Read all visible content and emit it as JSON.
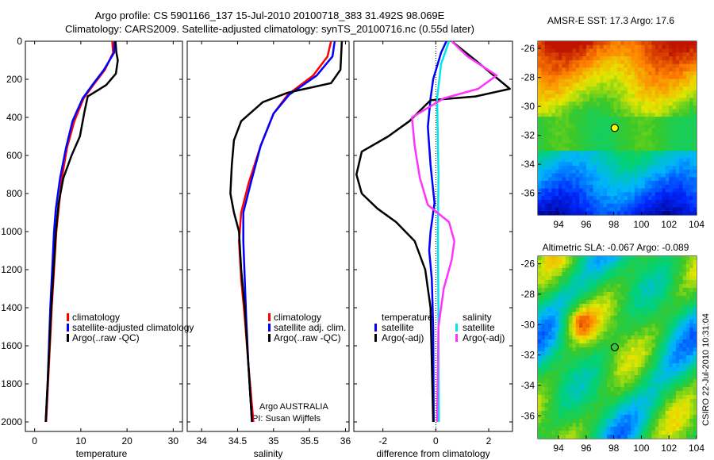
{
  "header": {
    "line1": "Argo profile: CS 5901166_137 15-Jul-2010 20100718_383 31.492S 98.069E",
    "line2": "Climatology: CARS2009. Satellite-adjusted climatology: synTS_20100716.nc (0.55d later)"
  },
  "footer": {
    "argo_line1": "Argo AUSTRALIA",
    "argo_line2": "PI: Susan Wijffels",
    "side_stamp": "CSIRO 22-Jul-2010 10:31:04"
  },
  "colors": {
    "climatology": "#ff0000",
    "satellite": "#0000ff",
    "argo": "#000000",
    "sal_satellite": "#00e5ee",
    "sal_argo": "#ff33ff"
  },
  "chart_data": [
    {
      "type": "line",
      "id": "temperature-panel",
      "xlabel": "temperature",
      "xlim": [
        -2,
        32
      ],
      "ylim": [
        0,
        2050
      ],
      "xticks": [
        "0",
        "10",
        "20",
        "30"
      ],
      "yticks": [
        "0",
        "200",
        "400",
        "600",
        "800",
        "1000",
        "1200",
        "1400",
        "1600",
        "1800",
        "2000"
      ],
      "legend": [
        "climatology",
        "satellite-adjusted climatology",
        "Argo(..raw -QC)"
      ],
      "series": [
        {
          "name": "climatology",
          "color": "#ff0000",
          "points": [
            [
              16.8,
              0
            ],
            [
              17,
              60
            ],
            [
              15.2,
              150
            ],
            [
              13,
              220
            ],
            [
              10.6,
              300
            ],
            [
              8.6,
              420
            ],
            [
              7,
              560
            ],
            [
              5.9,
              720
            ],
            [
              5.2,
              880
            ],
            [
              4.7,
              1000
            ],
            [
              4.2,
              1200
            ],
            [
              3.7,
              1400
            ],
            [
              3.3,
              1600
            ],
            [
              2.9,
              1800
            ],
            [
              2.5,
              2000
            ]
          ]
        },
        {
          "name": "satellite",
          "color": "#0000ff",
          "points": [
            [
              17.3,
              0
            ],
            [
              17.2,
              60
            ],
            [
              15,
              150
            ],
            [
              12.8,
              220
            ],
            [
              10.4,
              300
            ],
            [
              8.2,
              420
            ],
            [
              6.8,
              560
            ],
            [
              5.5,
              720
            ],
            [
              4.6,
              880
            ],
            [
              4.2,
              1000
            ],
            [
              3.8,
              1200
            ],
            [
              3.4,
              1400
            ],
            [
              3.1,
              1600
            ],
            [
              2.8,
              1800
            ],
            [
              2.4,
              2000
            ]
          ]
        },
        {
          "name": "Argo",
          "color": "#000000",
          "points": [
            [
              17.5,
              0
            ],
            [
              17.7,
              60
            ],
            [
              18,
              100
            ],
            [
              17.6,
              170
            ],
            [
              15.5,
              230
            ],
            [
              11.5,
              290
            ],
            [
              10.8,
              370
            ],
            [
              9.8,
              500
            ],
            [
              8,
              600
            ],
            [
              6.2,
              720
            ],
            [
              5.2,
              850
            ],
            [
              4.6,
              1000
            ],
            [
              4.1,
              1200
            ],
            [
              3.6,
              1400
            ],
            [
              3.2,
              1600
            ],
            [
              2.8,
              1800
            ],
            [
              2.4,
              2000
            ]
          ]
        }
      ]
    },
    {
      "type": "line",
      "id": "salinity-panel",
      "xlabel": "salinity",
      "xlim": [
        33.8,
        36.05
      ],
      "ylim": [
        0,
        2050
      ],
      "xticks": [
        "34",
        "34.5",
        "35",
        "35.5",
        "36"
      ],
      "legend": [
        "climatology",
        "satellite adj. clim.",
        "Argo(..raw -QC)"
      ],
      "series": [
        {
          "name": "climatology",
          "color": "#ff0000",
          "points": [
            [
              35.8,
              0
            ],
            [
              35.75,
              80
            ],
            [
              35.55,
              180
            ],
            [
              35.2,
              280
            ],
            [
              35,
              380
            ],
            [
              34.82,
              550
            ],
            [
              34.65,
              750
            ],
            [
              34.55,
              900
            ],
            [
              34.52,
              1050
            ],
            [
              34.55,
              1250
            ],
            [
              34.6,
              1450
            ],
            [
              34.65,
              1700
            ],
            [
              34.72,
              2000
            ]
          ]
        },
        {
          "name": "satellite",
          "color": "#0000ff",
          "points": [
            [
              35.85,
              0
            ],
            [
              35.82,
              80
            ],
            [
              35.6,
              180
            ],
            [
              35.22,
              280
            ],
            [
              35,
              380
            ],
            [
              34.82,
              550
            ],
            [
              34.68,
              750
            ],
            [
              34.58,
              900
            ],
            [
              34.58,
              1050
            ],
            [
              34.6,
              1250
            ],
            [
              34.62,
              1450
            ],
            [
              34.65,
              1700
            ],
            [
              34.7,
              2000
            ]
          ]
        },
        {
          "name": "Argo",
          "color": "#000000",
          "points": [
            [
              35.95,
              0
            ],
            [
              35.93,
              150
            ],
            [
              35.8,
              220
            ],
            [
              35.2,
              270
            ],
            [
              34.85,
              320
            ],
            [
              34.55,
              420
            ],
            [
              34.45,
              520
            ],
            [
              34.42,
              650
            ],
            [
              34.4,
              800
            ],
            [
              34.45,
              900
            ],
            [
              34.52,
              1000
            ],
            [
              34.55,
              1200
            ],
            [
              34.6,
              1400
            ],
            [
              34.65,
              1700
            ],
            [
              34.7,
              2000
            ]
          ]
        }
      ]
    },
    {
      "type": "line",
      "id": "difference-panel",
      "xlabel": "difference from climatology",
      "xlim": [
        -3.1,
        2.9
      ],
      "ylim": [
        0,
        2050
      ],
      "xticks": [
        "-2",
        "0",
        "2"
      ],
      "legend_left_title": "temperature",
      "legend_right_title": "salinity",
      "legend_left": [
        "satellite",
        "Argo(-adj)"
      ],
      "legend_right": [
        "satellite",
        "Argo(-adj)"
      ],
      "series": [
        {
          "name": "temperature satellite",
          "color": "#0000ff",
          "points": [
            [
              0.4,
              0
            ],
            [
              0.2,
              60
            ],
            [
              -0.1,
              200
            ],
            [
              -0.2,
              300
            ],
            [
              -0.3,
              450
            ],
            [
              -0.2,
              650
            ],
            [
              -0.05,
              850
            ],
            [
              -0.2,
              1000
            ],
            [
              -0.25,
              1100
            ],
            [
              -0.15,
              1250
            ],
            [
              -0.1,
              1500
            ],
            [
              -0.08,
              2000
            ]
          ]
        },
        {
          "name": "temperature Argo",
          "color": "#000000",
          "points": [
            [
              0.6,
              0
            ],
            [
              1.5,
              100
            ],
            [
              2.8,
              250
            ],
            [
              1.5,
              290
            ],
            [
              -0.2,
              310
            ],
            [
              -1,
              420
            ],
            [
              -1.8,
              500
            ],
            [
              -2.8,
              580
            ],
            [
              -3,
              700
            ],
            [
              -2.8,
              800
            ],
            [
              -2.2,
              880
            ],
            [
              -1.5,
              950
            ],
            [
              -0.8,
              1050
            ],
            [
              -0.4,
              1200
            ],
            [
              -0.2,
              1400
            ],
            [
              -0.1,
              2000
            ]
          ]
        },
        {
          "name": "salinity satellite",
          "color": "#00e5ee",
          "points": [
            [
              0.5,
              0
            ],
            [
              0.2,
              120
            ],
            [
              0.05,
              300
            ],
            [
              0.1,
              700
            ],
            [
              0.08,
              1000
            ],
            [
              0.1,
              1500
            ],
            [
              0.12,
              2000
            ]
          ]
        },
        {
          "name": "salinity Argo",
          "color": "#ff33ff",
          "points": [
            [
              0.6,
              0
            ],
            [
              1.2,
              80
            ],
            [
              2.3,
              180
            ],
            [
              1.6,
              250
            ],
            [
              0.3,
              300
            ],
            [
              -0.9,
              400
            ],
            [
              -0.8,
              550
            ],
            [
              -0.6,
              720
            ],
            [
              -0.3,
              860
            ],
            [
              0.5,
              950
            ],
            [
              0.7,
              1050
            ],
            [
              0.6,
              1150
            ],
            [
              0.3,
              1300
            ],
            [
              0.1,
              1500
            ],
            [
              0.05,
              2000
            ]
          ]
        }
      ]
    },
    {
      "type": "heatmap",
      "id": "sst-map",
      "title": "AMSR-E SST: 17.3 Argo: 17.6",
      "xlim": [
        92.5,
        104
      ],
      "ylim": [
        -37.5,
        -25.5
      ],
      "xticks": [
        "94",
        "96",
        "98",
        "100",
        "102",
        "104"
      ],
      "yticks": [
        "-26",
        "-28",
        "-30",
        "-32",
        "-34",
        "-36"
      ],
      "marker": [
        98.07,
        -31.49
      ]
    },
    {
      "type": "heatmap",
      "id": "sla-map",
      "title": "Altimetric SLA: -0.067 Argo: -0.089",
      "xlim": [
        92.5,
        104
      ],
      "ylim": [
        -37.5,
        -25.5
      ],
      "xticks": [
        "94",
        "96",
        "98",
        "100",
        "102",
        "104"
      ],
      "yticks": [
        "-26",
        "-28",
        "-30",
        "-32",
        "-34",
        "-36"
      ],
      "marker": [
        98.07,
        -31.49
      ]
    }
  ]
}
